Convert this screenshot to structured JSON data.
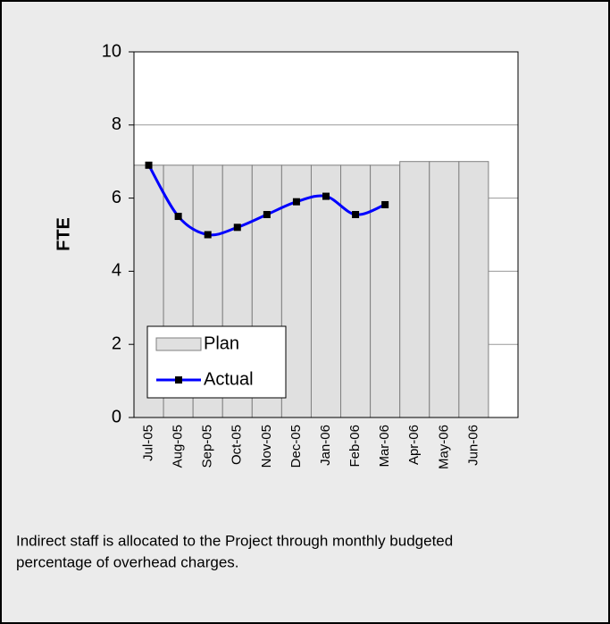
{
  "chart_data": {
    "type": "bar-line",
    "ylabel": "FTE",
    "categories": [
      "Jul-05",
      "Aug-05",
      "Sep-05",
      "Oct-05",
      "Nov-05",
      "Dec-05",
      "Jan-06",
      "Feb-06",
      "Mar-06",
      "Apr-06",
      "May-06",
      "Jun-06",
      null
    ],
    "series": [
      {
        "name": "Plan",
        "type": "bar",
        "color": "#e0e0e0",
        "values": [
          6.9,
          6.9,
          6.9,
          6.9,
          6.9,
          6.9,
          6.9,
          6.9,
          6.9,
          7.0,
          7.0,
          7.0,
          null
        ]
      },
      {
        "name": "Actual",
        "type": "line",
        "color": "#0000ff",
        "values": [
          6.9,
          5.5,
          5.0,
          5.2,
          5.55,
          5.9,
          6.05,
          5.55,
          5.82,
          null,
          null,
          null,
          null
        ]
      }
    ],
    "ylim": [
      0,
      10
    ],
    "yticks": [
      0,
      2,
      4,
      6,
      8,
      10
    ],
    "grid": true,
    "legend": "lower-left"
  },
  "caption": [
    "Indirect staff is allocated to the Project through monthly budgeted",
    "percentage of overhead charges."
  ]
}
